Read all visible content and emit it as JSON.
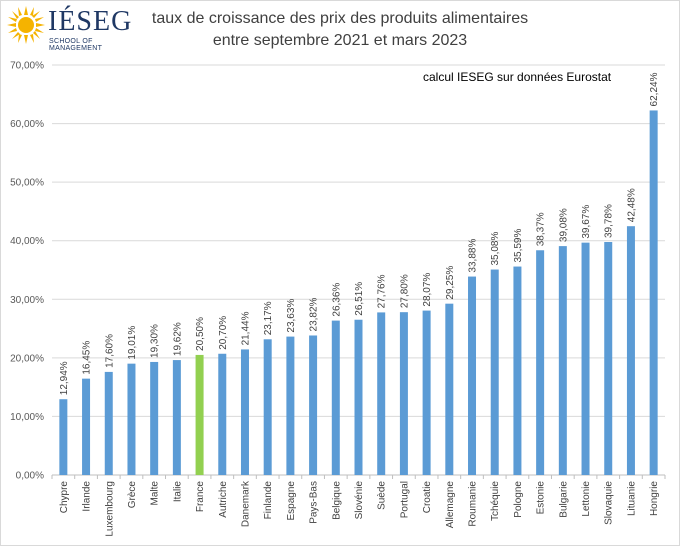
{
  "logo": {
    "name": "IÉSEG",
    "subtitle": "SCHOOL OF MANAGEMENT"
  },
  "header": {
    "title_line1": "taux de croissance des prix des produits alimentaires",
    "title_line2": "entre septembre 2021 et mars 2023",
    "note": "calcul IESEG sur données Eurostat"
  },
  "colors": {
    "bar": "#5b9bd5",
    "highlight": "#92d050",
    "grid": "#d9d9d9",
    "axis": "#bfbfbf"
  },
  "chart_data": {
    "type": "bar",
    "title": "taux de croissance des prix des produits alimentaires entre septembre 2021 et mars 2023",
    "xlabel": "",
    "ylabel": "",
    "ylim": [
      0,
      70
    ],
    "yticks": [
      0,
      10,
      20,
      30,
      40,
      50,
      60,
      70
    ],
    "ytick_labels": [
      "0,00%",
      "10,00%",
      "20,00%",
      "30,00%",
      "40,00%",
      "50,00%",
      "60,00%",
      "70,00%"
    ],
    "grid": true,
    "highlight_category": "France",
    "categories": [
      "Chypre",
      "Irlande",
      "Luxembourg",
      "Grèce",
      "Malte",
      "Italie",
      "France",
      "Autriche",
      "Danemark",
      "Finlande",
      "Espagne",
      "Pays-Bas",
      "Belgique",
      "Slovénie",
      "Suède",
      "Portugal",
      "Croatie",
      "Allemagne",
      "Roumanie",
      "Tchéquie",
      "Pologne",
      "Estonie",
      "Bulgarie",
      "Lettonie",
      "Slovaquie",
      "Lituanie",
      "Hongrie"
    ],
    "values": [
      12.94,
      16.45,
      17.6,
      19.01,
      19.3,
      19.62,
      20.5,
      20.7,
      21.44,
      23.17,
      23.63,
      23.82,
      26.36,
      26.51,
      27.76,
      27.8,
      28.07,
      29.25,
      33.88,
      35.08,
      35.59,
      38.37,
      39.08,
      39.67,
      39.78,
      42.48,
      62.24
    ],
    "data_labels": [
      "12,94%",
      "16,45%",
      "17,60%",
      "19,01%",
      "19,30%",
      "19,62%",
      "20,50%",
      "20,70%",
      "21,44%",
      "23,17%",
      "23,63%",
      "23,82%",
      "26,36%",
      "26,51%",
      "27,76%",
      "27,80%",
      "28,07%",
      "29,25%",
      "33,88%",
      "35,08%",
      "35,59%",
      "38,37%",
      "39,08%",
      "39,67%",
      "39,78%",
      "42,48%",
      "62,24%"
    ]
  }
}
